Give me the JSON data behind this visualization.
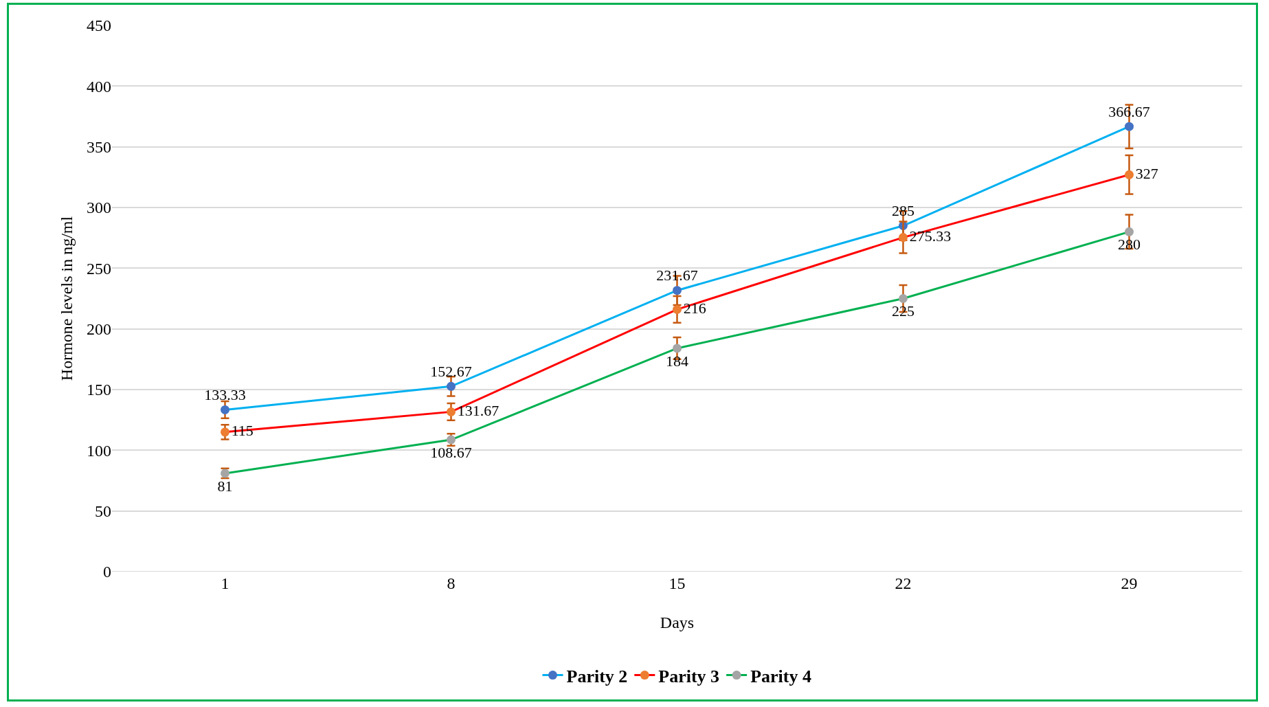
{
  "chart_data": {
    "type": "line",
    "xlabel": "Days",
    "ylabel": "Hormone levels in ng/ml",
    "categories": [
      "1",
      "8",
      "15",
      "22",
      "29"
    ],
    "series": [
      {
        "name": "Parity 2",
        "color": "#00b0f0",
        "colors": [
          "#4472c4",
          "#4472c4",
          "#4472c4",
          "#4472c4",
          "#4472c4"
        ],
        "values": [
          133.33,
          152.67,
          231.67,
          285,
          366.67
        ],
        "errors": [
          7,
          8,
          12,
          12,
          18
        ]
      },
      {
        "name": "Parity 3",
        "color": "#ff0000",
        "colors": [
          "#ed7d31",
          "#ed7d31",
          "#ed7d31",
          "#ed7d31",
          "#ed7d31"
        ],
        "values": [
          115,
          131.67,
          216,
          275.33,
          327
        ],
        "errors": [
          6,
          7,
          11,
          13,
          16
        ]
      },
      {
        "name": "Parity 4",
        "color": "#00b050",
        "colors": [
          "#a5a5a5",
          "#a5a5a5",
          "#a5a5a5",
          "#a5a5a5",
          "#a5a5a5"
        ],
        "values": [
          81,
          108.67,
          184,
          225,
          280
        ],
        "errors": [
          4,
          5,
          9,
          11,
          14
        ]
      }
    ],
    "ylim": [
      0,
      450
    ],
    "yticks": [
      0,
      50,
      100,
      150,
      200,
      250,
      300,
      350,
      400,
      450
    ],
    "grid": "y",
    "legend": "bottom",
    "marker": "circle",
    "line_style": "solid",
    "data_labels": true
  }
}
